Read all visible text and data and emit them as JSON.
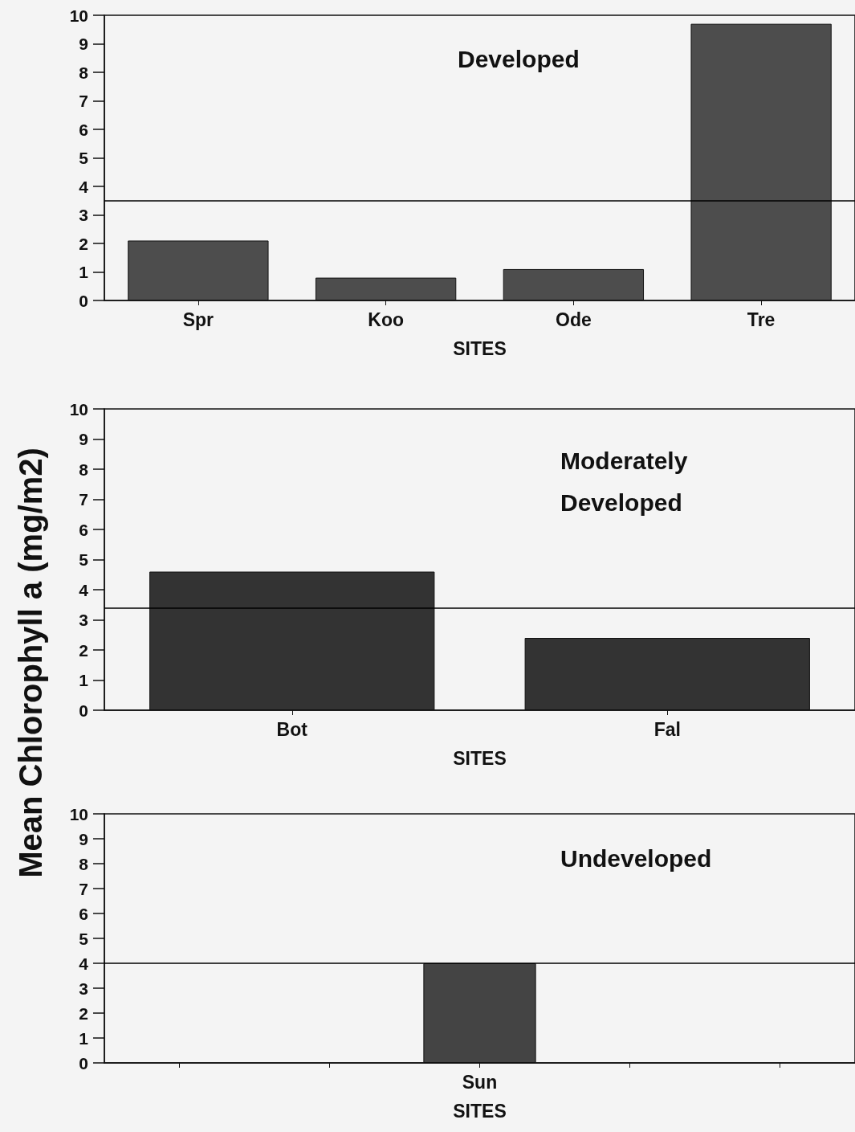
{
  "chart_data": [
    {
      "type": "bar",
      "title": "Developed",
      "xlabel": "SITES",
      "categories": [
        "Spr",
        "Koo",
        "Ode",
        "Tre"
      ],
      "values": [
        2.1,
        0.8,
        1.1,
        9.7
      ],
      "color": "#4d4d4d",
      "ylim": [
        0,
        10
      ],
      "yticks": [
        0,
        1,
        2,
        3,
        4,
        5,
        6,
        7,
        8,
        9,
        10
      ],
      "ref_lines": [
        {
          "axis": "y",
          "value": 3.5,
          "color": "#000000"
        }
      ]
    },
    {
      "type": "bar",
      "title": "Moderately\nDeveloped",
      "xlabel": "SITES",
      "ylabel": "Mean Chlorophyll a (mg/m2)",
      "categories": [
        "Bot",
        "Fal"
      ],
      "values": [
        4.6,
        2.4
      ],
      "color": "#333333",
      "ylim": [
        0,
        10
      ],
      "yticks": [
        0,
        1,
        2,
        3,
        4,
        5,
        6,
        7,
        8,
        9,
        10
      ],
      "ref_lines": [
        {
          "axis": "y",
          "value": 3.4,
          "color": "#000000"
        }
      ]
    },
    {
      "type": "bar",
      "title": "Undeveloped",
      "xlabel": "SITES",
      "categories": [
        null,
        null,
        "Sun",
        null,
        null
      ],
      "values": [
        null,
        null,
        4.0,
        null,
        null
      ],
      "color": "#444444",
      "ylim": [
        0,
        10
      ],
      "yticks": [
        0,
        1,
        2,
        3,
        4,
        5,
        6,
        7,
        8,
        9,
        10
      ],
      "ref_lines": [
        {
          "axis": "y",
          "value": 4.0,
          "color": "#000000"
        }
      ]
    }
  ]
}
